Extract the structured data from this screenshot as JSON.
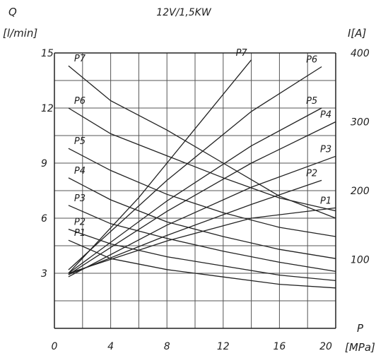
{
  "chart_data": {
    "type": "line",
    "title": "12V/1,5KW",
    "x_axis": {
      "label": "P",
      "unit": "[MPa]",
      "range": [
        0,
        20
      ],
      "ticks": [
        "0",
        "4",
        "8",
        "12",
        "16",
        "20"
      ],
      "tick_values": [
        0,
        4,
        8,
        12,
        16,
        20
      ]
    },
    "y_left": {
      "label": "Q",
      "unit": "[l/min]",
      "range": [
        0,
        15
      ],
      "ticks": [
        "3",
        "6",
        "9",
        "12",
        "15"
      ],
      "tick_values": [
        3,
        6,
        9,
        12,
        15
      ]
    },
    "y_right": {
      "label": "I[A]",
      "range": [
        0,
        400
      ],
      "ticks": [
        "100",
        "200",
        "300",
        "400"
      ],
      "tick_values": [
        100,
        200,
        300,
        400
      ]
    },
    "grid": true,
    "flow_series": [
      {
        "name": "P1",
        "axis": "left",
        "x": [
          1,
          4,
          8,
          12,
          16,
          20
        ],
        "y": [
          4.8,
          3.8,
          3.2,
          2.8,
          2.4,
          2.2
        ]
      },
      {
        "name": "P2",
        "axis": "left",
        "x": [
          1,
          4,
          8,
          12,
          16,
          20
        ],
        "y": [
          5.4,
          4.6,
          3.9,
          3.4,
          2.9,
          2.6
        ]
      },
      {
        "name": "P3",
        "axis": "left",
        "x": [
          1,
          4,
          8,
          12,
          16,
          20
        ],
        "y": [
          6.7,
          5.7,
          4.9,
          4.2,
          3.6,
          3.1
        ]
      },
      {
        "name": "P4",
        "axis": "left",
        "x": [
          1,
          4,
          8,
          12,
          16,
          20
        ],
        "y": [
          8.2,
          7.0,
          5.8,
          5.0,
          4.3,
          3.8
        ]
      },
      {
        "name": "P5",
        "axis": "left",
        "x": [
          1,
          4,
          8,
          12,
          16,
          20
        ],
        "y": [
          9.8,
          8.6,
          7.3,
          6.3,
          5.5,
          5.0
        ]
      },
      {
        "name": "P6",
        "axis": "left",
        "x": [
          1,
          4,
          8,
          12,
          16,
          20
        ],
        "y": [
          12.0,
          10.6,
          9.4,
          8.2,
          7.1,
          6.4
        ]
      },
      {
        "name": "P7",
        "axis": "left",
        "x": [
          1,
          4,
          8,
          12,
          16,
          20
        ],
        "y": [
          14.3,
          12.4,
          10.8,
          9.0,
          7.2,
          6.0
        ]
      }
    ],
    "current_series": [
      {
        "name": "P1",
        "axis": "right",
        "x": [
          1,
          8,
          14,
          20
        ],
        "y": [
          80,
          127,
          160,
          175
        ]
      },
      {
        "name": "P2",
        "axis": "right",
        "x": [
          1,
          8,
          14,
          19
        ],
        "y": [
          78,
          135,
          180,
          215
        ]
      },
      {
        "name": "P3",
        "axis": "right",
        "x": [
          1,
          8,
          14,
          20
        ],
        "y": [
          75,
          150,
          205,
          250
        ]
      },
      {
        "name": "P4",
        "axis": "right",
        "x": [
          1,
          8,
          14,
          20
        ],
        "y": [
          78,
          170,
          240,
          300
        ]
      },
      {
        "name": "P5",
        "axis": "right",
        "x": [
          1,
          8,
          14,
          19
        ],
        "y": [
          80,
          185,
          265,
          320
        ]
      },
      {
        "name": "P6",
        "axis": "right",
        "x": [
          1,
          8,
          14,
          19
        ],
        "y": [
          85,
          215,
          315,
          380
        ]
      },
      {
        "name": "P7",
        "axis": "right",
        "x": [
          1,
          6,
          10,
          14
        ],
        "y": [
          80,
          190,
          290,
          390
        ]
      }
    ]
  }
}
